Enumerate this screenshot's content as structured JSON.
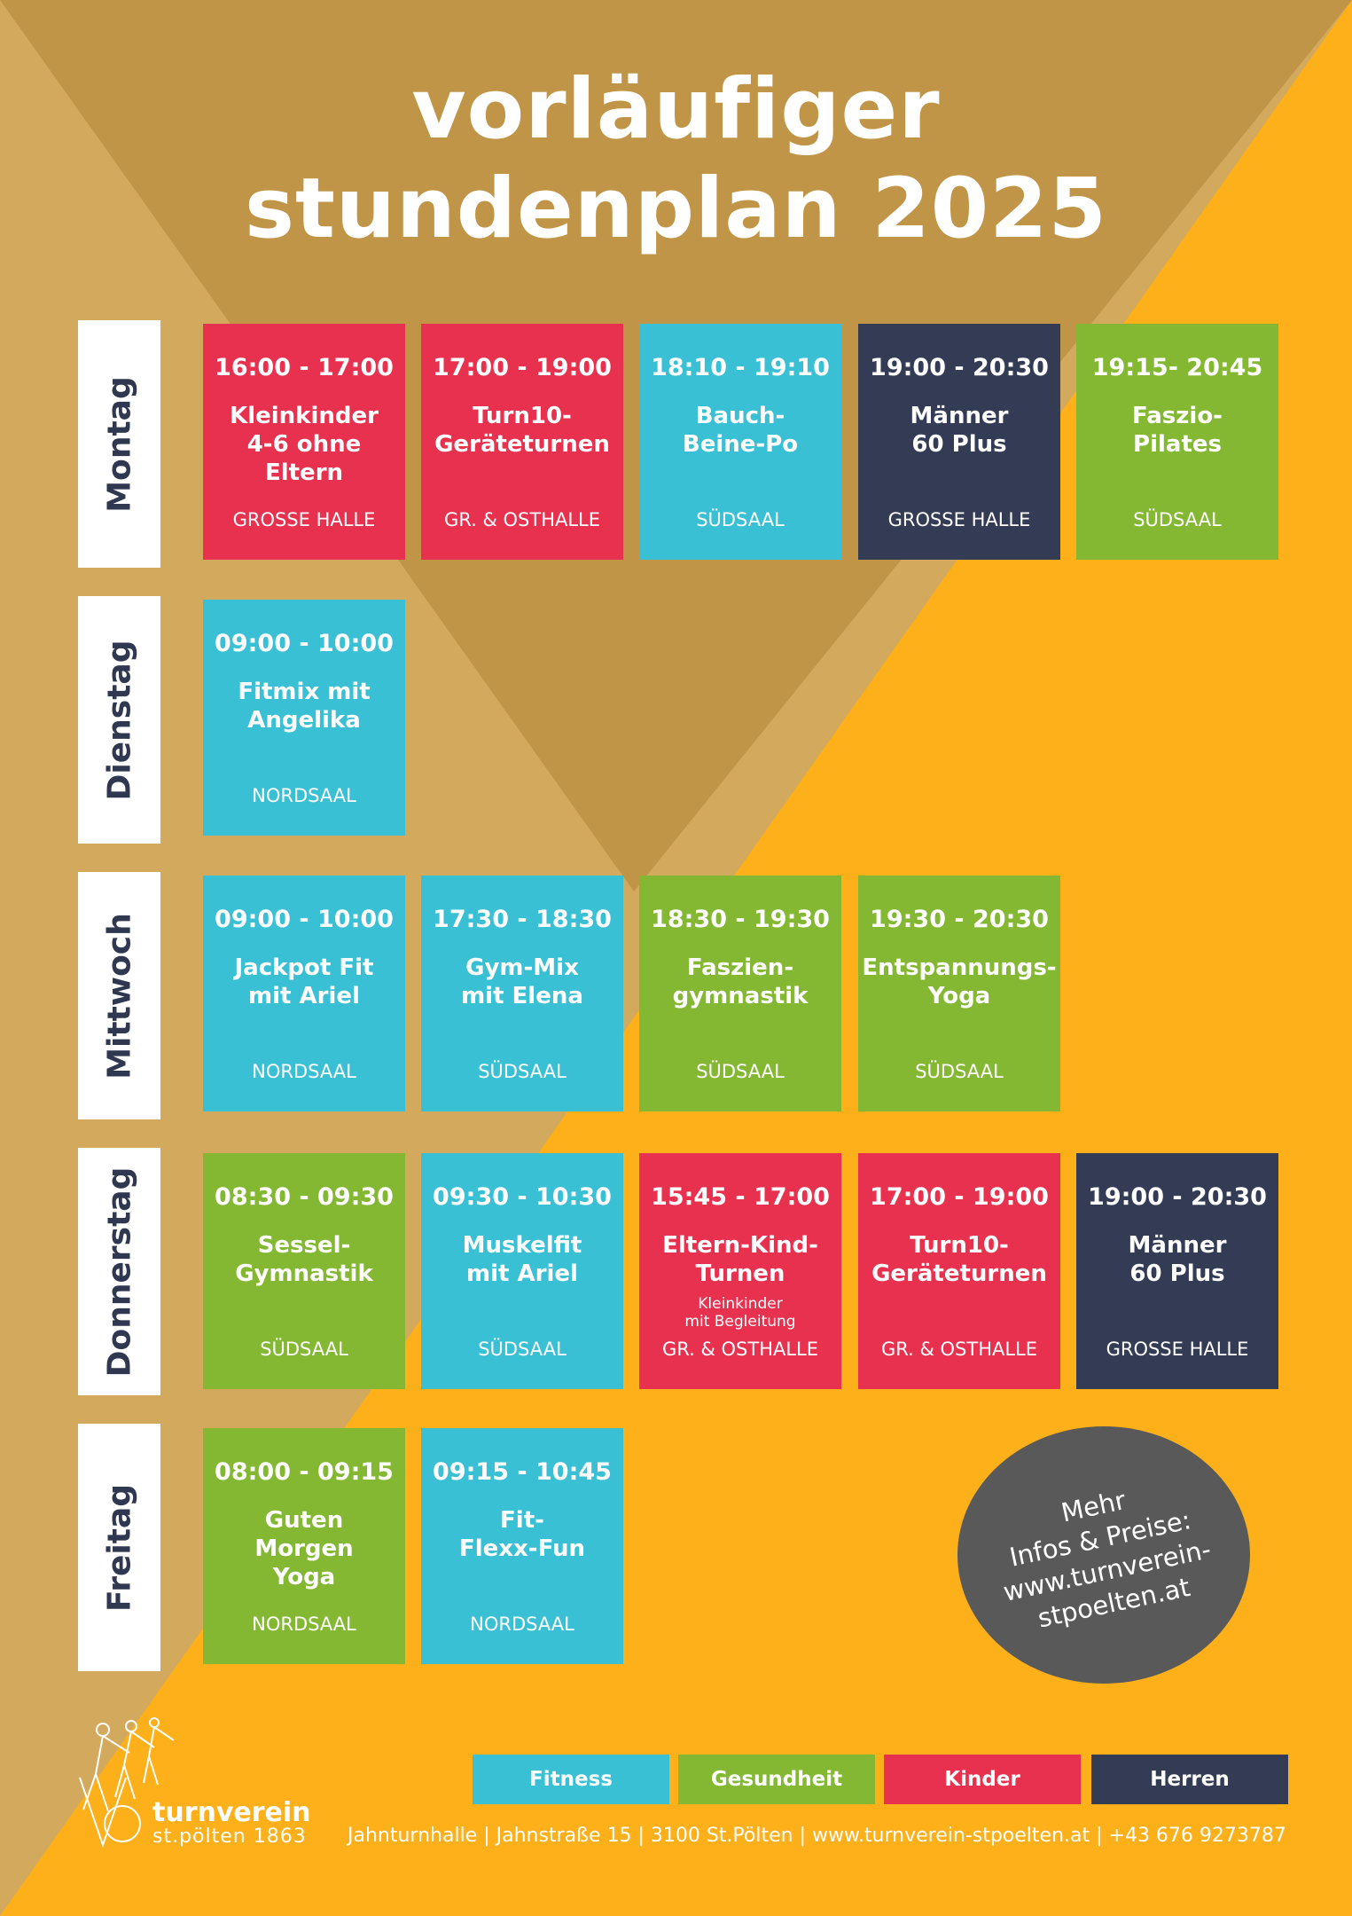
{
  "title": {
    "line1": "vorläufiger",
    "line2": "stundenplan 2025"
  },
  "colors": {
    "fitness": "#3ac0d4",
    "gesundheit": "#84b833",
    "kinder": "#e8314f",
    "herren": "#333b55",
    "background_orange": "#fdb01a",
    "background_brown": "#c19548",
    "background_tan": "#d3a95d"
  },
  "days": [
    {
      "label": "Montag",
      "slots": [
        {
          "time": "16:00 - 17:00",
          "name": "Kleinkinder\n4-6 ohne\nEltern",
          "room": "GROSSE HALLE",
          "category": "kinder"
        },
        {
          "time": "17:00 - 19:00",
          "name": "Turn10-\nGeräteturnen",
          "room": "GR. & OSTHALLE",
          "category": "kinder"
        },
        {
          "time": "18:10 - 19:10",
          "name": "Bauch-\nBeine-Po",
          "room": "SÜDSAAL",
          "category": "fitness"
        },
        {
          "time": "19:00 - 20:30",
          "name": "Männer\n60 Plus",
          "room": "GROSSE HALLE",
          "category": "herren"
        },
        {
          "time": "19:15- 20:45",
          "name": "Faszio-\nPilates",
          "room": "SÜDSAAL",
          "category": "gesundheit"
        }
      ]
    },
    {
      "label": "Dienstag",
      "slots": [
        {
          "time": "09:00 - 10:00",
          "name": "Fitmix mit\nAngelika",
          "room": "NORDSAAL",
          "category": "fitness"
        }
      ]
    },
    {
      "label": "Mittwoch",
      "slots": [
        {
          "time": "09:00 - 10:00",
          "name": "Jackpot Fit\nmit Ariel",
          "room": "NORDSAAL",
          "category": "fitness"
        },
        {
          "time": "17:30 - 18:30",
          "name": "Gym-Mix\nmit Elena",
          "room": "SÜDSAAL",
          "category": "fitness"
        },
        {
          "time": "18:30 - 19:30",
          "name": "Faszien-\ngymnastik",
          "room": "SÜDSAAL",
          "category": "gesundheit"
        },
        {
          "time": "19:30 - 20:30",
          "name": "Entspannungs-\nYoga",
          "room": "SÜDSAAL",
          "category": "gesundheit"
        }
      ]
    },
    {
      "label": "Donnerstag",
      "slots": [
        {
          "time": "08:30 - 09:30",
          "name": "Sessel-\nGymnastik",
          "room": "SÜDSAAL",
          "category": "gesundheit"
        },
        {
          "time": "09:30 - 10:30",
          "name": "Muskelfit\nmit Ariel",
          "room": "SÜDSAAL",
          "category": "fitness"
        },
        {
          "time": "15:45 - 17:00",
          "name": "Eltern-Kind-\nTurnen",
          "sub": "Kleinkinder\nmit Begleitung",
          "room": "GR. & OSTHALLE",
          "category": "kinder"
        },
        {
          "time": "17:00 - 19:00",
          "name": "Turn10-\nGeräteturnen",
          "room": "GR. & OSTHALLE",
          "category": "kinder"
        },
        {
          "time": "19:00 - 20:30",
          "name": "Männer\n60 Plus",
          "room": "GROSSE HALLE",
          "category": "herren"
        }
      ]
    },
    {
      "label": "Freitag",
      "slots": [
        {
          "time": "08:00 - 09:15",
          "name": "Guten\nMorgen\nYoga",
          "room": "NORDSAAL",
          "category": "gesundheit"
        },
        {
          "time": "09:15 - 10:45",
          "name": "Fit-\nFlexx-Fun",
          "room": "NORDSAAL",
          "category": "fitness"
        }
      ]
    }
  ],
  "info": {
    "line1": "Mehr",
    "line2": "Infos & Preise:",
    "line3": "www.turnverein-",
    "line4": "stpoelten.at"
  },
  "legend": [
    {
      "label": "Fitness",
      "category": "fitness"
    },
    {
      "label": "Gesundheit",
      "category": "gesundheit"
    },
    {
      "label": "Kinder",
      "category": "kinder"
    },
    {
      "label": "Herren",
      "category": "herren"
    }
  ],
  "brand": {
    "name": "turnverein",
    "sub": "st.pölten 1863",
    "logo_icon": "gymnast-figures-icon"
  },
  "footer": {
    "text": "Jahnturnhalle | Jahnstraße 15 | 3100 St.Pölten | www.turnverein-stpoelten.at | +43 676 9273787"
  }
}
